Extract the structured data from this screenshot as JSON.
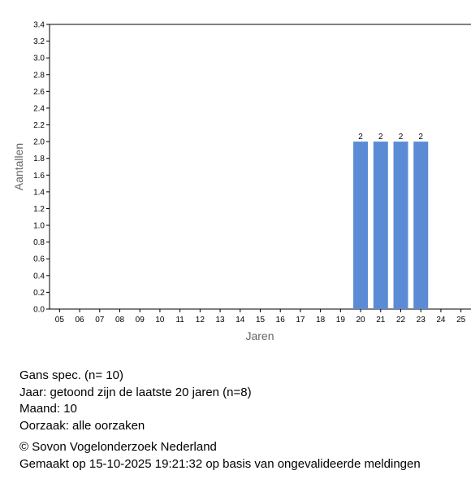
{
  "chart_data": {
    "type": "bar",
    "title": "",
    "xlabel": "Jaren",
    "ylabel": "Aantallen",
    "ylim": [
      0,
      3.4
    ],
    "yticks": [
      "0.0",
      "0.2",
      "0.4",
      "0.6",
      "0.8",
      "1.0",
      "1.2",
      "1.4",
      "1.6",
      "1.8",
      "2.0",
      "2.2",
      "2.4",
      "2.6",
      "2.8",
      "3.0",
      "3.2",
      "3.4"
    ],
    "categories": [
      "05",
      "06",
      "07",
      "08",
      "09",
      "10",
      "11",
      "12",
      "13",
      "14",
      "15",
      "16",
      "17",
      "18",
      "19",
      "20",
      "21",
      "22",
      "23",
      "24",
      "25"
    ],
    "values": [
      0,
      0,
      0,
      0,
      0,
      0,
      0,
      0,
      0,
      0,
      0,
      0,
      0,
      0,
      0,
      2,
      2,
      2,
      2,
      0,
      0
    ],
    "data_labels": [
      "",
      "",
      "",
      "",
      "",
      "",
      "",
      "",
      "",
      "",
      "",
      "",
      "",
      "",
      "",
      "2",
      "2",
      "2",
      "2",
      "",
      ""
    ],
    "bar_color": "#5b8bd5",
    "grid": false,
    "legend": "none"
  },
  "caption": {
    "species": "Gans spec.  (n= 10)",
    "year": "Jaar: getoond zijn de laatste 20 jaren (n=8)",
    "month": "Maand: 10",
    "cause": "Oorzaak: alle oorzaken",
    "copyright": "© Sovon Vogelonderzoek Nederland",
    "generated": "Gemaakt op 15-10-2025 19:21:32 op basis van ongevalideerde meldingen"
  }
}
